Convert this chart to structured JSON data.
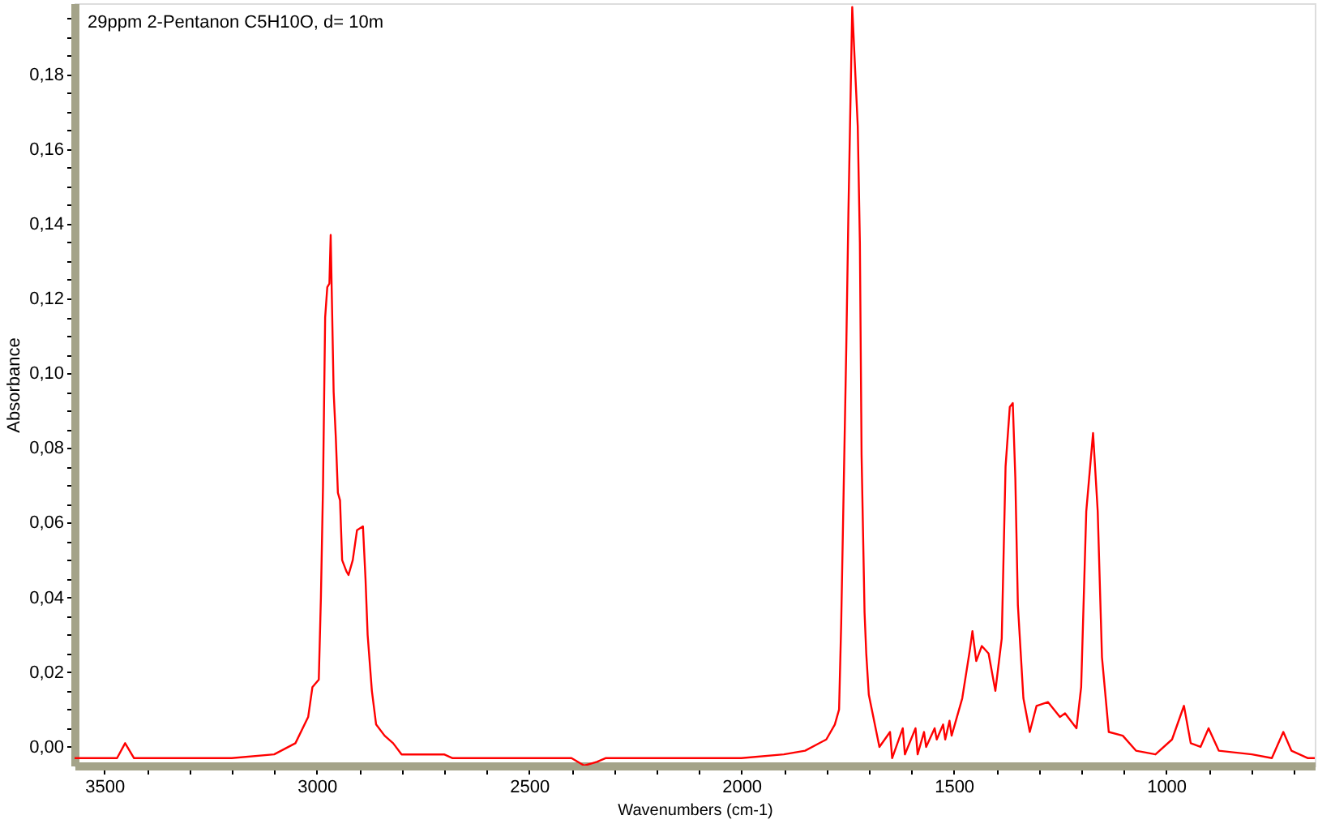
{
  "chart_data": {
    "type": "line",
    "title": "29ppm 2-Pentanon C5H10O, d= 10m",
    "xlabel": "Wavenumbers (cm-1)",
    "ylabel": "Absorbance",
    "x": [
      3570,
      3470,
      3451,
      3430,
      3200,
      3100,
      3050,
      3020,
      3010,
      2995,
      2990,
      2985,
      2980,
      2975,
      2970,
      2967,
      2960,
      2955,
      2950,
      2945,
      2940,
      2930,
      2925,
      2915,
      2905,
      2891,
      2885,
      2880,
      2870,
      2860,
      2840,
      2820,
      2800,
      2760,
      2700,
      2680,
      2400,
      2370,
      2340,
      2320,
      2000,
      1900,
      1850,
      1800,
      1780,
      1770,
      1765,
      1753,
      1748,
      1739,
      1726,
      1721,
      1717,
      1713,
      1710,
      1706,
      1700,
      1675,
      1650,
      1645,
      1620,
      1615,
      1590,
      1585,
      1570,
      1565,
      1545,
      1540,
      1525,
      1520,
      1510,
      1505,
      1500,
      1480,
      1462,
      1456,
      1447,
      1434,
      1418,
      1402,
      1387,
      1378,
      1368,
      1361,
      1355,
      1349,
      1336,
      1321,
      1305,
      1278,
      1250,
      1238,
      1211,
      1200,
      1188,
      1172,
      1161,
      1151,
      1135,
      1102,
      1071,
      1025,
      986,
      958,
      942,
      919,
      900,
      876,
      798,
      751,
      724,
      705,
      666,
      650
    ],
    "series": [
      {
        "color": "#ff0000",
        "values": [
          -0.003,
          -0.003,
          0.001,
          -0.003,
          -0.003,
          -0.002,
          0.001,
          0.008,
          0.016,
          0.018,
          0.04,
          0.07,
          0.115,
          0.123,
          0.124,
          0.137,
          0.095,
          0.083,
          0.068,
          0.066,
          0.05,
          0.047,
          0.046,
          0.05,
          0.058,
          0.059,
          0.045,
          0.03,
          0.015,
          0.006,
          0.003,
          0.001,
          -0.002,
          -0.002,
          -0.002,
          -0.003,
          -0.003,
          -0.005,
          -0.004,
          -0.003,
          -0.003,
          -0.002,
          -0.001,
          0.002,
          0.006,
          0.01,
          0.033,
          0.107,
          0.143,
          0.198,
          0.166,
          0.135,
          0.078,
          0.054,
          0.036,
          0.025,
          0.014,
          0.0,
          0.004,
          -0.003,
          0.005,
          -0.002,
          0.005,
          -0.002,
          0.004,
          0.0,
          0.005,
          0.002,
          0.006,
          0.002,
          0.007,
          0.003,
          0.005,
          0.013,
          0.026,
          0.031,
          0.023,
          0.027,
          0.025,
          0.015,
          0.029,
          0.075,
          0.091,
          0.092,
          0.072,
          0.038,
          0.013,
          0.004,
          0.011,
          0.012,
          0.008,
          0.009,
          0.005,
          0.016,
          0.063,
          0.084,
          0.063,
          0.024,
          0.004,
          0.003,
          -0.001,
          -0.002,
          0.002,
          0.011,
          0.001,
          0.0,
          0.005,
          -0.001,
          -0.002,
          -0.003,
          0.004,
          -0.001,
          -0.003,
          -0.003
        ]
      }
    ],
    "xlim": [
      3570,
      650
    ],
    "xticks": [
      3500,
      {
        "value": 3400,
        "label": null
      },
      {
        "value": 3300,
        "label": null
      },
      {
        "value": 3200,
        "label": null
      },
      {
        "value": 3100,
        "label": null
      },
      3000,
      {
        "value": 2900,
        "label": null
      },
      {
        "value": 2800,
        "label": null
      },
      {
        "value": 2700,
        "label": null
      },
      {
        "value": 2600,
        "label": null
      },
      2500,
      {
        "value": 2400,
        "label": null
      },
      {
        "value": 2300,
        "label": null
      },
      {
        "value": 2200,
        "label": null
      },
      {
        "value": 2100,
        "label": null
      },
      2000,
      {
        "value": 1900,
        "label": null
      },
      {
        "value": 1800,
        "label": null
      },
      {
        "value": 1700,
        "label": null
      },
      {
        "value": 1600,
        "label": null
      },
      1500,
      {
        "value": 1400,
        "label": null
      },
      {
        "value": 1300,
        "label": null
      },
      {
        "value": 1200,
        "label": null
      },
      {
        "value": 1100,
        "label": null
      },
      1000,
      {
        "value": 900,
        "label": null
      },
      {
        "value": 800,
        "label": null
      },
      {
        "value": 700,
        "label": null
      }
    ],
    "ylim": [
      -0.005,
      0.199
    ],
    "yticks": [
      {
        "value": 0,
        "label": "0,00"
      },
      {
        "value": 0.005,
        "label": null
      },
      {
        "value": 0.01,
        "label": null
      },
      {
        "value": 0.015,
        "label": null
      },
      {
        "value": 0.02,
        "label": "0,02"
      },
      {
        "value": 0.025,
        "label": null
      },
      {
        "value": 0.03,
        "label": null
      },
      {
        "value": 0.035,
        "label": null
      },
      {
        "value": 0.04,
        "label": "0,04"
      },
      {
        "value": 0.045,
        "label": null
      },
      {
        "value": 0.05,
        "label": null
      },
      {
        "value": 0.055,
        "label": null
      },
      {
        "value": 0.06,
        "label": "0,06"
      },
      {
        "value": 0.065,
        "label": null
      },
      {
        "value": 0.07,
        "label": null
      },
      {
        "value": 0.075,
        "label": null
      },
      {
        "value": 0.08,
        "label": "0,08"
      },
      {
        "value": 0.085,
        "label": null
      },
      {
        "value": 0.09,
        "label": null
      },
      {
        "value": 0.095,
        "label": null
      },
      {
        "value": 0.1,
        "label": "0,10"
      },
      {
        "value": 0.105,
        "label": null
      },
      {
        "value": 0.11,
        "label": null
      },
      {
        "value": 0.115,
        "label": null
      },
      {
        "value": 0.12,
        "label": "0,12"
      },
      {
        "value": 0.125,
        "label": null
      },
      {
        "value": 0.13,
        "label": null
      },
      {
        "value": 0.135,
        "label": null
      },
      {
        "value": 0.14,
        "label": "0,14"
      },
      {
        "value": 0.145,
        "label": null
      },
      {
        "value": 0.15,
        "label": null
      },
      {
        "value": 0.155,
        "label": null
      },
      {
        "value": 0.16,
        "label": "0,16"
      },
      {
        "value": 0.165,
        "label": null
      },
      {
        "value": 0.17,
        "label": null
      },
      {
        "value": 0.175,
        "label": null
      },
      {
        "value": 0.18,
        "label": "0,18"
      },
      {
        "value": 0.185,
        "label": null
      },
      {
        "value": 0.19,
        "label": null
      },
      {
        "value": 0.195,
        "label": null
      }
    ],
    "grid": false
  }
}
